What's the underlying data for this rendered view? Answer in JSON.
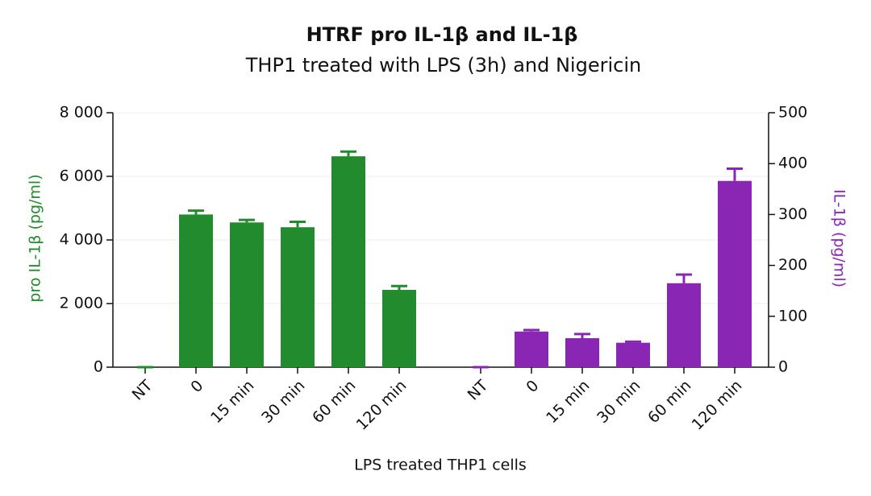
{
  "chart_data": {
    "type": "bar",
    "title": "HTRF pro IL-1β and IL-1β",
    "subtitle": "THP1 treated with LPS (3h) and Nigericin",
    "x_label": "LPS treated THP1 cells",
    "y_label": "pro IL-1β (pg/ml)",
    "y2_label": "IL-1β (pg/ml)",
    "categories": [
      "NT",
      "0",
      "15 min",
      "30 min",
      "60 min",
      "120 min",
      "NT",
      "0",
      "15 min",
      "30 min",
      "60 min",
      "120 min"
    ],
    "series": [
      {
        "name": "pro IL-1β",
        "color": "#228b2e",
        "axis": "y",
        "values": [
          0,
          4800,
          4550,
          4400,
          6630,
          2430,
          null,
          null,
          null,
          null,
          null,
          null
        ],
        "errors": [
          0,
          120,
          80,
          170,
          150,
          120,
          null,
          null,
          null,
          null,
          null,
          null
        ]
      },
      {
        "name": "IL-1β",
        "color": "#8a26b4",
        "axis": "y2",
        "values": [
          null,
          null,
          null,
          null,
          null,
          null,
          0,
          70,
          57,
          48,
          165,
          366
        ],
        "errors": [
          null,
          null,
          null,
          null,
          null,
          null,
          0,
          3,
          8,
          2,
          17,
          24
        ]
      }
    ],
    "ylim": [
      0,
      8000
    ],
    "yticks": [
      0,
      {
        "value": 2000,
        "label": "2 000"
      },
      {
        "value": 4000,
        "label": "4 000"
      },
      {
        "value": 6000,
        "label": "6 000"
      },
      {
        "value": 8000,
        "label": "8 000"
      }
    ],
    "y2lim": [
      0,
      500
    ],
    "y2ticks": [
      0,
      100,
      200,
      300,
      400,
      500
    ],
    "grid": true
  }
}
